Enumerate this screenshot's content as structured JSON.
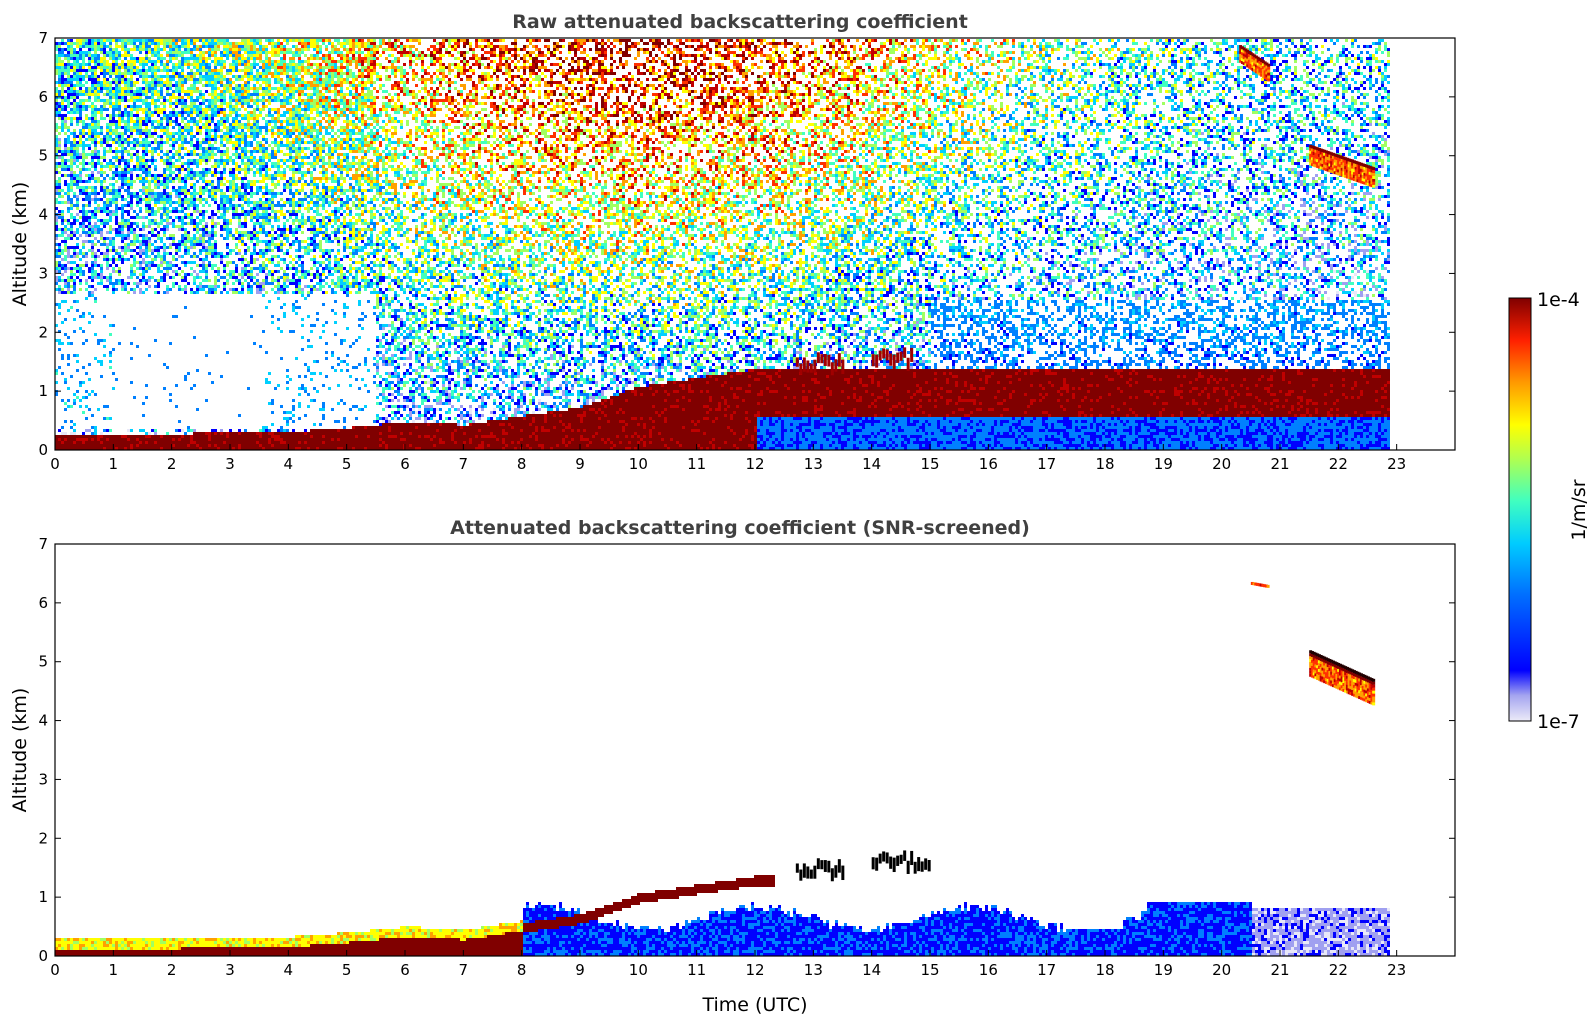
{
  "chart_data": [
    {
      "type": "heatmap",
      "title": "Raw attenuated backscattering coefficient",
      "xlabel": "",
      "ylabel": "Altitude (km)",
      "xlim": [
        0,
        24
      ],
      "ylim": [
        0,
        7
      ],
      "xticks": [
        "0",
        "1",
        "2",
        "3",
        "4",
        "5",
        "6",
        "7",
        "8",
        "9",
        "10",
        "11",
        "12",
        "13",
        "14",
        "15",
        "16",
        "17",
        "18",
        "19",
        "20",
        "21",
        "22",
        "23"
      ],
      "yticks": [
        "0",
        "1",
        "2",
        "3",
        "4",
        "5",
        "6",
        "7"
      ],
      "data_end_time": 22.9,
      "features": {
        "boundary_layer_top_km": [
          [
            0,
            0.15
          ],
          [
            2,
            0.15
          ],
          [
            4,
            0.18
          ],
          [
            5,
            0.25
          ],
          [
            6,
            0.35
          ],
          [
            7,
            0.3
          ],
          [
            8,
            0.45
          ],
          [
            9,
            0.6
          ],
          [
            10,
            0.95
          ],
          [
            11,
            1.1
          ],
          [
            12,
            1.25
          ]
        ],
        "low_clouds": [
          {
            "t": [
              12.7,
              13.5
            ],
            "alt_km": 1.5
          },
          {
            "t": [
              14.0,
              14.7
            ],
            "alt_km": 1.55
          }
        ],
        "cirrus": [
          {
            "t": [
              21.5,
              22.6
            ],
            "alt_km": [
              4.5,
              5.2
            ]
          },
          {
            "t": [
              20.3,
              20.8
            ],
            "alt_km": [
              6.3,
              6.9
            ]
          }
        ]
      }
    },
    {
      "type": "heatmap",
      "title": "Attenuated backscattering coefficient (SNR-screened)",
      "xlabel": "Time (UTC)",
      "ylabel": "Altitude (km)",
      "xlim": [
        0,
        24
      ],
      "ylim": [
        0,
        7
      ],
      "xticks": [
        "0",
        "1",
        "2",
        "3",
        "4",
        "5",
        "6",
        "7",
        "8",
        "9",
        "10",
        "11",
        "12",
        "13",
        "14",
        "15",
        "16",
        "17",
        "18",
        "19",
        "20",
        "21",
        "22",
        "23"
      ],
      "yticks": [
        "0",
        "1",
        "2",
        "3",
        "4",
        "5",
        "6",
        "7"
      ],
      "data_end_time": 22.9,
      "features": {
        "low_clouds": [
          {
            "t": [
              12.7,
              13.5
            ],
            "alt_km": 1.5
          },
          {
            "t": [
              14.0,
              15.0
            ],
            "alt_km": 1.6
          }
        ],
        "cirrus": [
          {
            "t": [
              21.5,
              22.6
            ],
            "alt_km": [
              4.3,
              5.2
            ]
          },
          {
            "t": [
              20.5,
              20.8
            ],
            "alt_km": [
              6.3,
              6.4
            ]
          }
        ]
      }
    }
  ],
  "colorbar": {
    "max_label": "1e-4",
    "min_label": "1e-7",
    "unit": "1/m/sr",
    "colors": [
      "#e8e8f8",
      "#a0a0f0",
      "#0000ff",
      "#0080ff",
      "#00d0ff",
      "#40ffc0",
      "#a0ff60",
      "#ffff00",
      "#ffa000",
      "#ff3000",
      "#c00000",
      "#800000"
    ]
  }
}
